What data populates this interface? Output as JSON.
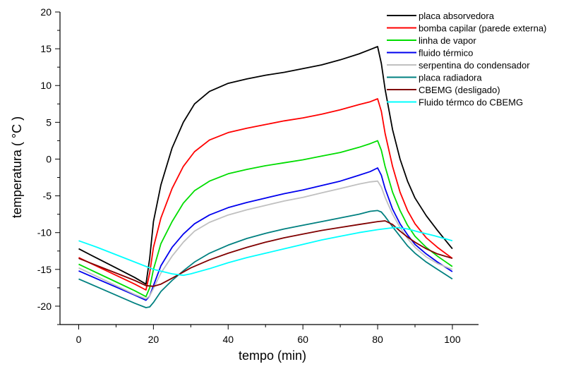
{
  "chart_data": {
    "type": "line",
    "xlabel": "tempo (min)",
    "ylabel": "temperatura ( °C )",
    "xlim": [
      -5,
      107
    ],
    "ylim": [
      -22.5,
      20
    ],
    "xticks": [
      0,
      20,
      40,
      60,
      80,
      100
    ],
    "yticks": [
      -20,
      -15,
      -10,
      -5,
      0,
      5,
      10,
      15,
      20
    ],
    "grid": false,
    "legend_position": "top-right",
    "series": [
      {
        "name": "placa absorvedora",
        "color": "#000000",
        "points": [
          [
            0,
            -12.2
          ],
          [
            5,
            -13.5
          ],
          [
            10,
            -14.8
          ],
          [
            15,
            -16.1
          ],
          [
            18,
            -17.0
          ],
          [
            19,
            -13.5
          ],
          [
            20,
            -8.5
          ],
          [
            22,
            -3.5
          ],
          [
            25,
            1.5
          ],
          [
            28,
            5.0
          ],
          [
            31,
            7.5
          ],
          [
            35,
            9.2
          ],
          [
            40,
            10.3
          ],
          [
            45,
            10.9
          ],
          [
            50,
            11.4
          ],
          [
            55,
            11.8
          ],
          [
            60,
            12.3
          ],
          [
            65,
            12.8
          ],
          [
            70,
            13.5
          ],
          [
            75,
            14.3
          ],
          [
            78,
            14.9
          ],
          [
            80,
            15.3
          ],
          [
            81,
            13.0
          ],
          [
            82,
            9.5
          ],
          [
            84,
            4.0
          ],
          [
            86,
            0.0
          ],
          [
            88,
            -3.0
          ],
          [
            90,
            -5.3
          ],
          [
            93,
            -7.7
          ],
          [
            96,
            -9.7
          ],
          [
            100,
            -12.2
          ]
        ]
      },
      {
        "name": "bomba capilar (parede externa)",
        "color": "#ff0000",
        "points": [
          [
            0,
            -13.4
          ],
          [
            5,
            -14.6
          ],
          [
            10,
            -15.8
          ],
          [
            15,
            -17.0
          ],
          [
            18,
            -17.8
          ],
          [
            19,
            -15.5
          ],
          [
            20,
            -12.0
          ],
          [
            22,
            -8.0
          ],
          [
            25,
            -4.0
          ],
          [
            28,
            -1.0
          ],
          [
            31,
            1.0
          ],
          [
            35,
            2.6
          ],
          [
            40,
            3.6
          ],
          [
            45,
            4.2
          ],
          [
            50,
            4.7
          ],
          [
            55,
            5.2
          ],
          [
            60,
            5.6
          ],
          [
            65,
            6.1
          ],
          [
            70,
            6.7
          ],
          [
            75,
            7.4
          ],
          [
            78,
            7.8
          ],
          [
            80,
            8.2
          ],
          [
            81,
            6.5
          ],
          [
            82,
            3.5
          ],
          [
            84,
            -1.0
          ],
          [
            86,
            -4.5
          ],
          [
            88,
            -7.0
          ],
          [
            90,
            -8.8
          ],
          [
            93,
            -10.7
          ],
          [
            96,
            -12.0
          ],
          [
            100,
            -13.5
          ]
        ]
      },
      {
        "name": "linha de vapor",
        "color": "#00dd00",
        "points": [
          [
            0,
            -14.3
          ],
          [
            5,
            -15.5
          ],
          [
            10,
            -16.7
          ],
          [
            15,
            -17.9
          ],
          [
            18,
            -18.7
          ],
          [
            19,
            -17.5
          ],
          [
            20,
            -15.0
          ],
          [
            22,
            -11.5
          ],
          [
            25,
            -8.5
          ],
          [
            28,
            -6.0
          ],
          [
            31,
            -4.3
          ],
          [
            35,
            -3.0
          ],
          [
            40,
            -2.0
          ],
          [
            45,
            -1.4
          ],
          [
            50,
            -0.9
          ],
          [
            55,
            -0.5
          ],
          [
            60,
            -0.1
          ],
          [
            65,
            0.4
          ],
          [
            70,
            0.9
          ],
          [
            75,
            1.6
          ],
          [
            78,
            2.1
          ],
          [
            80,
            2.5
          ],
          [
            81,
            1.2
          ],
          [
            82,
            -1.0
          ],
          [
            84,
            -4.5
          ],
          [
            86,
            -7.0
          ],
          [
            88,
            -9.0
          ],
          [
            90,
            -10.5
          ],
          [
            93,
            -12.0
          ],
          [
            96,
            -13.2
          ],
          [
            100,
            -14.6
          ]
        ]
      },
      {
        "name": "fluido térmico",
        "color": "#0000ee",
        "points": [
          [
            0,
            -15.2
          ],
          [
            5,
            -16.3
          ],
          [
            10,
            -17.4
          ],
          [
            15,
            -18.5
          ],
          [
            18,
            -19.2
          ],
          [
            19,
            -18.6
          ],
          [
            20,
            -17.2
          ],
          [
            22,
            -14.5
          ],
          [
            25,
            -12.0
          ],
          [
            28,
            -10.2
          ],
          [
            31,
            -8.8
          ],
          [
            35,
            -7.6
          ],
          [
            40,
            -6.6
          ],
          [
            45,
            -5.9
          ],
          [
            50,
            -5.3
          ],
          [
            55,
            -4.7
          ],
          [
            60,
            -4.2
          ],
          [
            65,
            -3.6
          ],
          [
            70,
            -3.0
          ],
          [
            75,
            -2.2
          ],
          [
            78,
            -1.7
          ],
          [
            80,
            -1.2
          ],
          [
            81,
            -2.2
          ],
          [
            82,
            -4.0
          ],
          [
            84,
            -6.8
          ],
          [
            86,
            -8.8
          ],
          [
            88,
            -10.3
          ],
          [
            90,
            -11.6
          ],
          [
            93,
            -12.9
          ],
          [
            96,
            -14.0
          ],
          [
            100,
            -15.3
          ]
        ]
      },
      {
        "name": "serpentina do condensador",
        "color": "#c0c0c0",
        "points": [
          [
            0,
            -14.8
          ],
          [
            5,
            -16.0
          ],
          [
            10,
            -17.2
          ],
          [
            15,
            -18.4
          ],
          [
            18,
            -19.0
          ],
          [
            19,
            -18.6
          ],
          [
            20,
            -17.6
          ],
          [
            22,
            -15.5
          ],
          [
            25,
            -13.2
          ],
          [
            28,
            -11.3
          ],
          [
            31,
            -9.8
          ],
          [
            35,
            -8.6
          ],
          [
            40,
            -7.6
          ],
          [
            45,
            -6.9
          ],
          [
            50,
            -6.3
          ],
          [
            55,
            -5.7
          ],
          [
            60,
            -5.2
          ],
          [
            65,
            -4.6
          ],
          [
            70,
            -4.0
          ],
          [
            75,
            -3.4
          ],
          [
            78,
            -3.1
          ],
          [
            80,
            -3.0
          ],
          [
            81,
            -3.8
          ],
          [
            82,
            -5.2
          ],
          [
            84,
            -7.5
          ],
          [
            86,
            -9.3
          ],
          [
            88,
            -10.8
          ],
          [
            90,
            -12.0
          ],
          [
            93,
            -13.3
          ],
          [
            96,
            -14.2
          ],
          [
            100,
            -15.0
          ]
        ]
      },
      {
        "name": "placa radiadora",
        "color": "#008080",
        "points": [
          [
            0,
            -16.3
          ],
          [
            5,
            -17.4
          ],
          [
            10,
            -18.5
          ],
          [
            15,
            -19.6
          ],
          [
            18,
            -20.2
          ],
          [
            19,
            -20.1
          ],
          [
            20,
            -19.5
          ],
          [
            22,
            -18.0
          ],
          [
            25,
            -16.5
          ],
          [
            28,
            -15.2
          ],
          [
            31,
            -14.0
          ],
          [
            35,
            -12.8
          ],
          [
            40,
            -11.7
          ],
          [
            45,
            -10.8
          ],
          [
            50,
            -10.1
          ],
          [
            55,
            -9.5
          ],
          [
            60,
            -9.0
          ],
          [
            65,
            -8.5
          ],
          [
            70,
            -8.0
          ],
          [
            75,
            -7.5
          ],
          [
            78,
            -7.1
          ],
          [
            80,
            -7.0
          ],
          [
            81,
            -7.2
          ],
          [
            82,
            -7.8
          ],
          [
            84,
            -9.2
          ],
          [
            86,
            -10.5
          ],
          [
            88,
            -11.8
          ],
          [
            90,
            -12.8
          ],
          [
            93,
            -14.0
          ],
          [
            96,
            -15.0
          ],
          [
            100,
            -16.3
          ]
        ]
      },
      {
        "name": "CBEMG (desligado)",
        "color": "#800000",
        "points": [
          [
            0,
            -13.5
          ],
          [
            5,
            -14.5
          ],
          [
            10,
            -15.5
          ],
          [
            15,
            -16.5
          ],
          [
            18,
            -17.2
          ],
          [
            20,
            -17.3
          ],
          [
            22,
            -17.0
          ],
          [
            25,
            -16.2
          ],
          [
            30,
            -14.8
          ],
          [
            35,
            -13.7
          ],
          [
            40,
            -12.8
          ],
          [
            45,
            -12.0
          ],
          [
            50,
            -11.3
          ],
          [
            55,
            -10.7
          ],
          [
            60,
            -10.2
          ],
          [
            65,
            -9.7
          ],
          [
            70,
            -9.3
          ],
          [
            75,
            -8.9
          ],
          [
            80,
            -8.5
          ],
          [
            82,
            -8.4
          ],
          [
            84,
            -8.9
          ],
          [
            86,
            -9.8
          ],
          [
            88,
            -10.6
          ],
          [
            90,
            -11.3
          ],
          [
            93,
            -12.2
          ],
          [
            96,
            -12.9
          ],
          [
            100,
            -13.5
          ]
        ]
      },
      {
        "name": "Fluido térmco do CBEMG",
        "color": "#00ffff",
        "points": [
          [
            0,
            -11.1
          ],
          [
            5,
            -12.0
          ],
          [
            10,
            -13.0
          ],
          [
            15,
            -14.0
          ],
          [
            20,
            -15.0
          ],
          [
            25,
            -15.6
          ],
          [
            28,
            -15.8
          ],
          [
            30,
            -15.6
          ],
          [
            35,
            -14.9
          ],
          [
            40,
            -14.1
          ],
          [
            45,
            -13.4
          ],
          [
            50,
            -12.8
          ],
          [
            55,
            -12.2
          ],
          [
            60,
            -11.6
          ],
          [
            65,
            -11.0
          ],
          [
            70,
            -10.5
          ],
          [
            75,
            -10.0
          ],
          [
            80,
            -9.6
          ],
          [
            83,
            -9.4
          ],
          [
            85,
            -9.3
          ],
          [
            88,
            -9.5
          ],
          [
            91,
            -9.9
          ],
          [
            95,
            -10.4
          ],
          [
            100,
            -11.1
          ]
        ]
      }
    ]
  }
}
